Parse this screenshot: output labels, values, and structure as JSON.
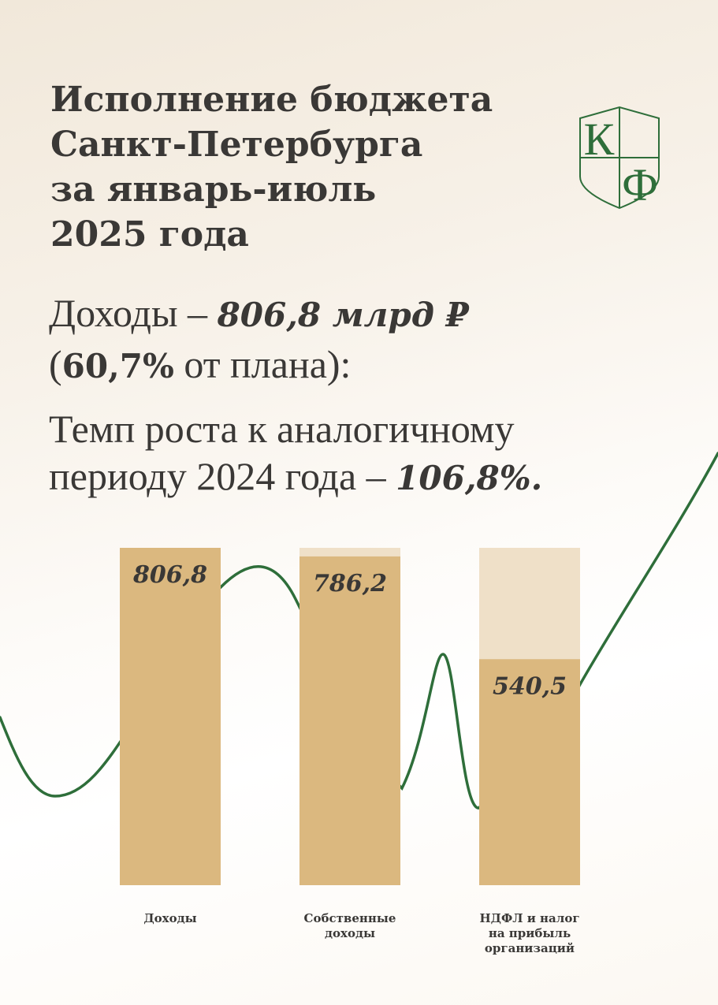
{
  "header": {
    "title_lines": [
      "Исполнение бюджета",
      "Санкт-Петербурга",
      "за январь-июль",
      "2025 года"
    ]
  },
  "logo": {
    "letters": [
      "К",
      "Ф"
    ],
    "color": "#2e6e3a"
  },
  "income": {
    "prefix": "Доходы – ",
    "amount": "806,8 млрд ₽",
    "open_paren": "(",
    "percent": "60,7%",
    "suffix": " от плана):"
  },
  "growth": {
    "line1": "Темп роста к аналогичному",
    "line2_prefix": "периоду 2024 года – ",
    "rate": "106,8%."
  },
  "colors": {
    "bar_fill": "#dbb87f",
    "bar_remainder": "#efe0c8",
    "curve": "#2e6e3a",
    "text": "#3a3836"
  },
  "chart_data": {
    "type": "bar",
    "categories": [
      [
        "Доходы"
      ],
      [
        "Собственные",
        "доходы"
      ],
      [
        "НДФЛ и налог",
        "на прибыль",
        "организаций"
      ]
    ],
    "values": [
      806.8,
      786.2,
      540.5
    ],
    "value_labels": [
      "806,8",
      "786,2",
      "540,5"
    ],
    "ylim": [
      0,
      806.8
    ]
  }
}
